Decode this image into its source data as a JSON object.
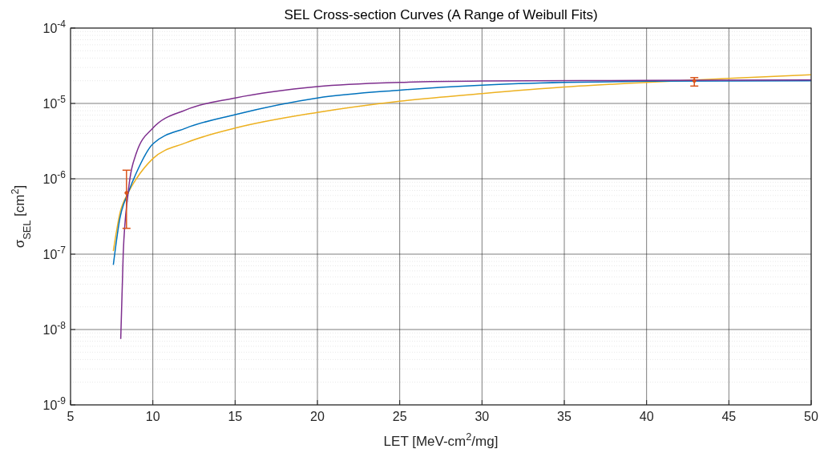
{
  "chart_data": {
    "type": "line",
    "title": "SEL Cross-section Curves (A Range of Weibull Fits)",
    "xlabel": "LET [MeV-cm$^{2}$/mg]",
    "ylabel": "σ$_{SEL}$ [cm$^{2}$]",
    "log": "y",
    "grid": true,
    "line_style": "solid",
    "xlim": [
      5,
      50
    ],
    "xticks": [
      5,
      10,
      15,
      20,
      25,
      30,
      35,
      40,
      45,
      50
    ],
    "ylim": [
      1e-09,
      0.0001
    ],
    "yticks": [
      {
        "value": 1e-09,
        "label": "10$^{-9}$"
      },
      {
        "value": 1e-08,
        "label": "10$^{-8}$"
      },
      {
        "value": 1e-07,
        "label": "10$^{-7}$"
      },
      {
        "value": 1e-06,
        "label": "10$^{-6}$"
      },
      {
        "value": 1e-05,
        "label": "10$^{-5}$"
      },
      {
        "value": 0.0001,
        "label": "10$^{-4}$"
      }
    ],
    "series": [
      {
        "color": "#edb120",
        "x": [
          7.6,
          8,
          8.5,
          9,
          10,
          12,
          15,
          20,
          25,
          30,
          35,
          40,
          45,
          50
        ],
        "values": [
          1.1e-07,
          3.5e-07,
          6.5e-07,
          1e-06,
          1.85e-06,
          3e-06,
          4.7e-06,
          7.6e-06,
          1.07e-05,
          1.35e-05,
          1.65e-05,
          1.9e-05,
          2.15e-05,
          2.4e-05
        ]
      },
      {
        "color": "#0072bd",
        "x": [
          7.6,
          8,
          8.5,
          9,
          10,
          12,
          15,
          20,
          25,
          30,
          35,
          40,
          50
        ],
        "values": [
          7.2e-08,
          3e-07,
          6.5e-07,
          1.2e-06,
          2.9e-06,
          4.7e-06,
          7.1e-06,
          1.18e-05,
          1.5e-05,
          1.75e-05,
          1.9e-05,
          1.97e-05,
          2e-05
        ]
      },
      {
        "color": "#7e2f8e",
        "x": [
          8.05,
          8.2,
          8.5,
          9,
          10,
          12,
          15,
          20,
          25,
          30,
          40,
          50
        ],
        "values": [
          7.5e-09,
          1e-07,
          6.5e-07,
          2.2e-06,
          4.7e-06,
          8.2e-06,
          1.18e-05,
          1.67e-05,
          1.9e-05,
          1.98e-05,
          2.02e-05,
          2.05e-05
        ]
      },
      {
        "type": "scatter",
        "color": "#d95319",
        "x": [
          8.4,
          42.9
        ],
        "values": [
          6.5e-07,
          2e-05
        ],
        "errors": [
          [
            2.2e-07,
            1.3e-06
          ],
          [
            1.7e-05,
            2.2e-05
          ]
        ]
      }
    ]
  }
}
